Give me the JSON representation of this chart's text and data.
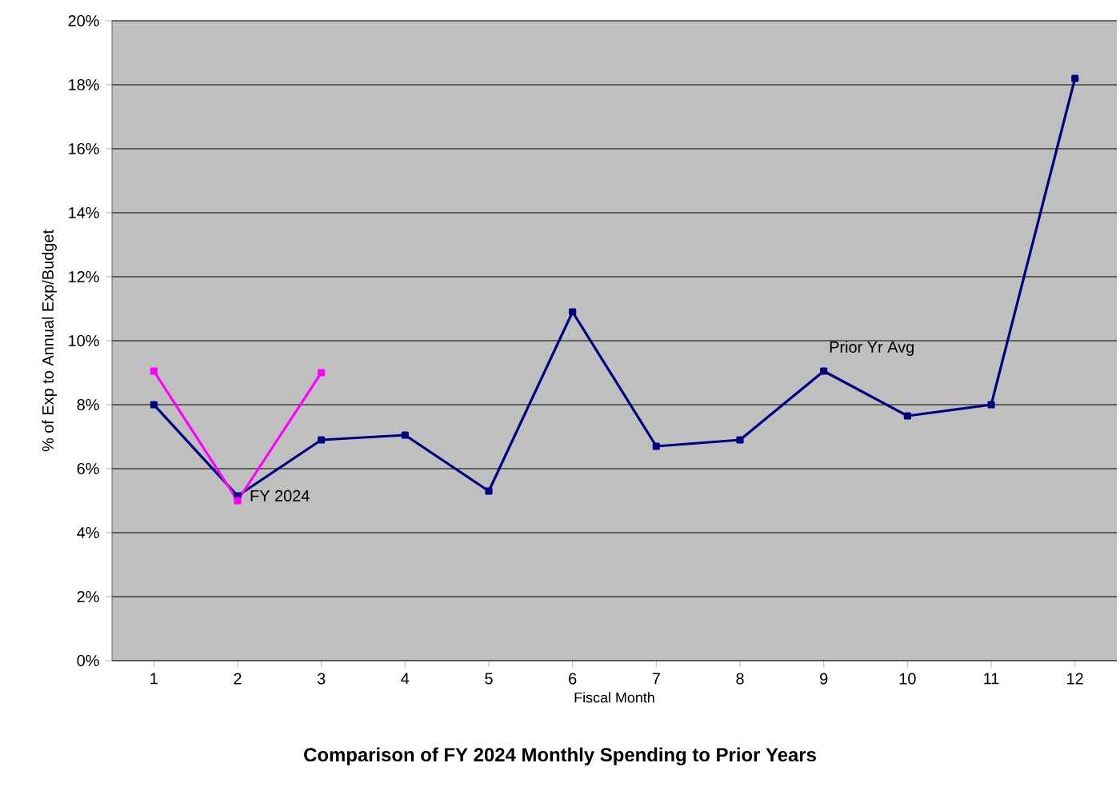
{
  "chart_data": {
    "type": "line",
    "title": "Comparison of  FY 2024 Monthly Spending to Prior Years",
    "xlabel": "Fiscal Month",
    "ylabel": "% of Exp to Annual Exp/Budget",
    "categories": [
      "1",
      "2",
      "3",
      "4",
      "5",
      "6",
      "7",
      "8",
      "9",
      "10",
      "11",
      "12"
    ],
    "series": [
      {
        "name": "Prior Yr Avg",
        "color": "#000080",
        "values": [
          8.0,
          5.15,
          6.9,
          7.05,
          5.3,
          10.9,
          6.7,
          6.9,
          9.05,
          7.65,
          8.0,
          18.2
        ]
      },
      {
        "name": "FY 2024",
        "color": "#ff00ff",
        "values": [
          9.05,
          5.0,
          9.0,
          null,
          null,
          null,
          null,
          null,
          null,
          null,
          null,
          null
        ]
      }
    ],
    "ylim": [
      0,
      20
    ],
    "yticks": [
      {
        "value": 0,
        "label": "0%"
      },
      {
        "value": 2,
        "label": "2%"
      },
      {
        "value": 4,
        "label": "4%"
      },
      {
        "value": 6,
        "label": "6%"
      },
      {
        "value": 8,
        "label": "8%"
      },
      {
        "value": 10,
        "label": "10%"
      },
      {
        "value": 12,
        "label": "12%"
      },
      {
        "value": 14,
        "label": "14%"
      },
      {
        "value": 16,
        "label": "16%"
      },
      {
        "value": 18,
        "label": "18%"
      },
      {
        "value": 20,
        "label": "20%"
      }
    ],
    "grid": "y",
    "legend": false,
    "marker": "square",
    "line_style": "solid"
  }
}
